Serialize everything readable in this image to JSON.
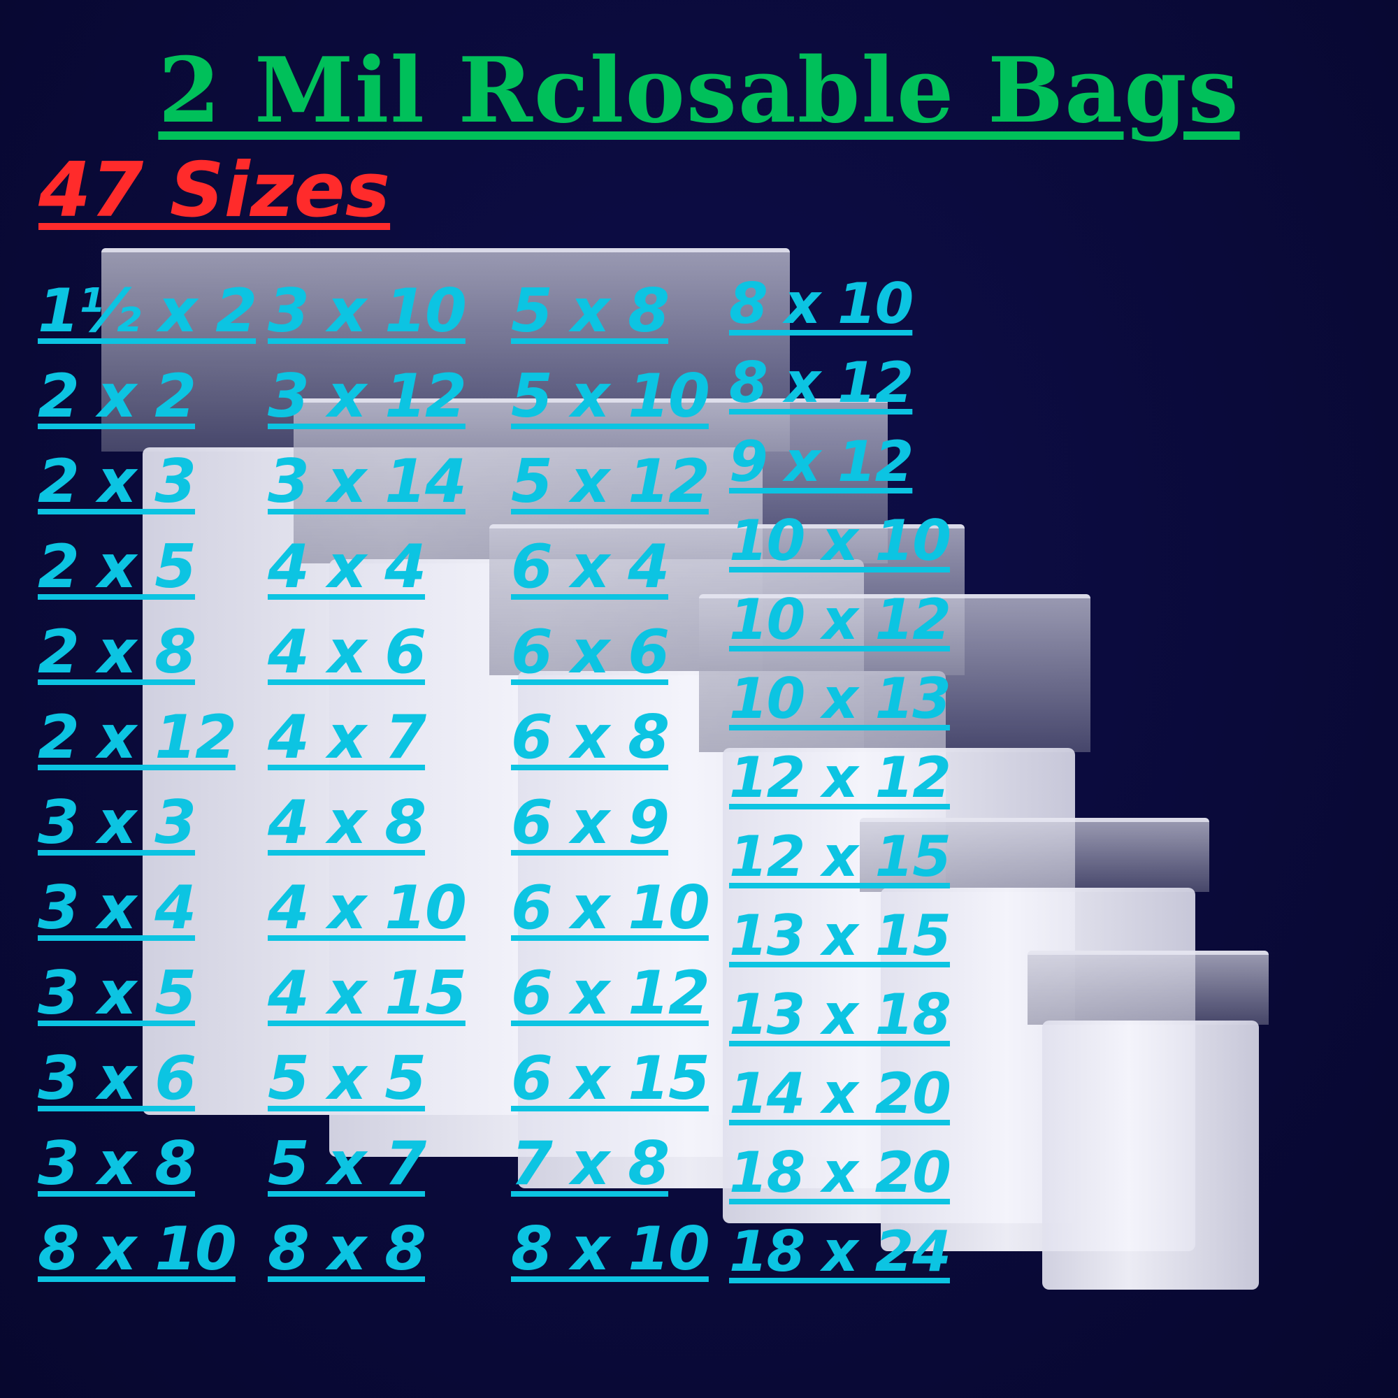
{
  "title": "2 Mil Rclosable Bags",
  "size_count_label": "47 Sizes",
  "colors": {
    "title": "#00c05a",
    "count": "#ff2b2b",
    "sizes": "#0cc4e2",
    "background": "#0a0a3c"
  },
  "columns": [
    [
      "1½ x 2",
      "2 x 2",
      "2 x 3",
      "2 x 5",
      "2 x 8",
      "2 x 12",
      "3 x 3",
      "3 x 4",
      "3 x 5",
      "3 x 6",
      "3 x 8",
      "8 x 10"
    ],
    [
      "3 x 10",
      "3 x 12",
      "3 x 14",
      "4 x 4",
      "4 x 6",
      "4 x 7",
      "4 x 8",
      "4 x 10",
      "4 x 15",
      "5 x 5",
      "5 x 7",
      "8 x 8"
    ],
    [
      "5 x 8",
      "5 x 10",
      "5 x 12",
      "6 x 4",
      "6 x 6",
      "6 x 8",
      "6 x 9",
      "6 x 10",
      "6 x 12",
      "6 x 15",
      "7 x 8",
      "8 x 10"
    ],
    [
      "8 x 10",
      "8 x 12",
      "9 x 12",
      "10 x 10",
      "10 x 12",
      "10 x 13",
      "12 x 12",
      "12 x 15",
      "13 x 15",
      "13 x 18",
      "14 x 20",
      "18 x 20",
      "18 x 24"
    ]
  ]
}
